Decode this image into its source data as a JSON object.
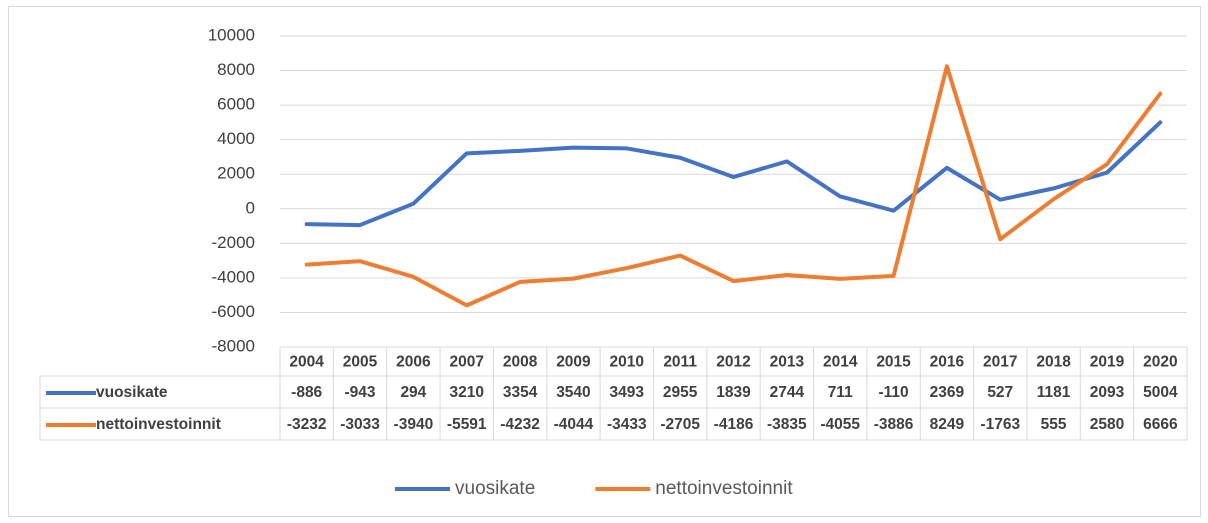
{
  "chart_data": {
    "type": "line",
    "categories": [
      "2004",
      "2005",
      "2006",
      "2007",
      "2008",
      "2009",
      "2010",
      "2011",
      "2012",
      "2013",
      "2014",
      "2015",
      "2016",
      "2017",
      "2018",
      "2019",
      "2020"
    ],
    "series": [
      {
        "name": "vuosikate",
        "color": "#4472c4",
        "values": [
          -886,
          -943,
          294,
          3210,
          3354,
          3540,
          3493,
          2955,
          1839,
          2744,
          711,
          -110,
          2369,
          527,
          1181,
          2093,
          5004
        ]
      },
      {
        "name": "nettoinvestoinnit",
        "color": "#ed7d31",
        "values": [
          -3232,
          -3033,
          -3940,
          -5591,
          -4232,
          -4044,
          -3433,
          -2705,
          -4186,
          -3835,
          -4055,
          -3886,
          8249,
          -1763,
          555,
          2580,
          6666
        ]
      }
    ],
    "ylim": [
      -8000,
      10000
    ],
    "yticks": [
      -8000,
      -6000,
      -4000,
      -2000,
      0,
      2000,
      4000,
      6000,
      8000,
      10000
    ],
    "grid": true,
    "data_table": true,
    "legend": "bottom"
  }
}
